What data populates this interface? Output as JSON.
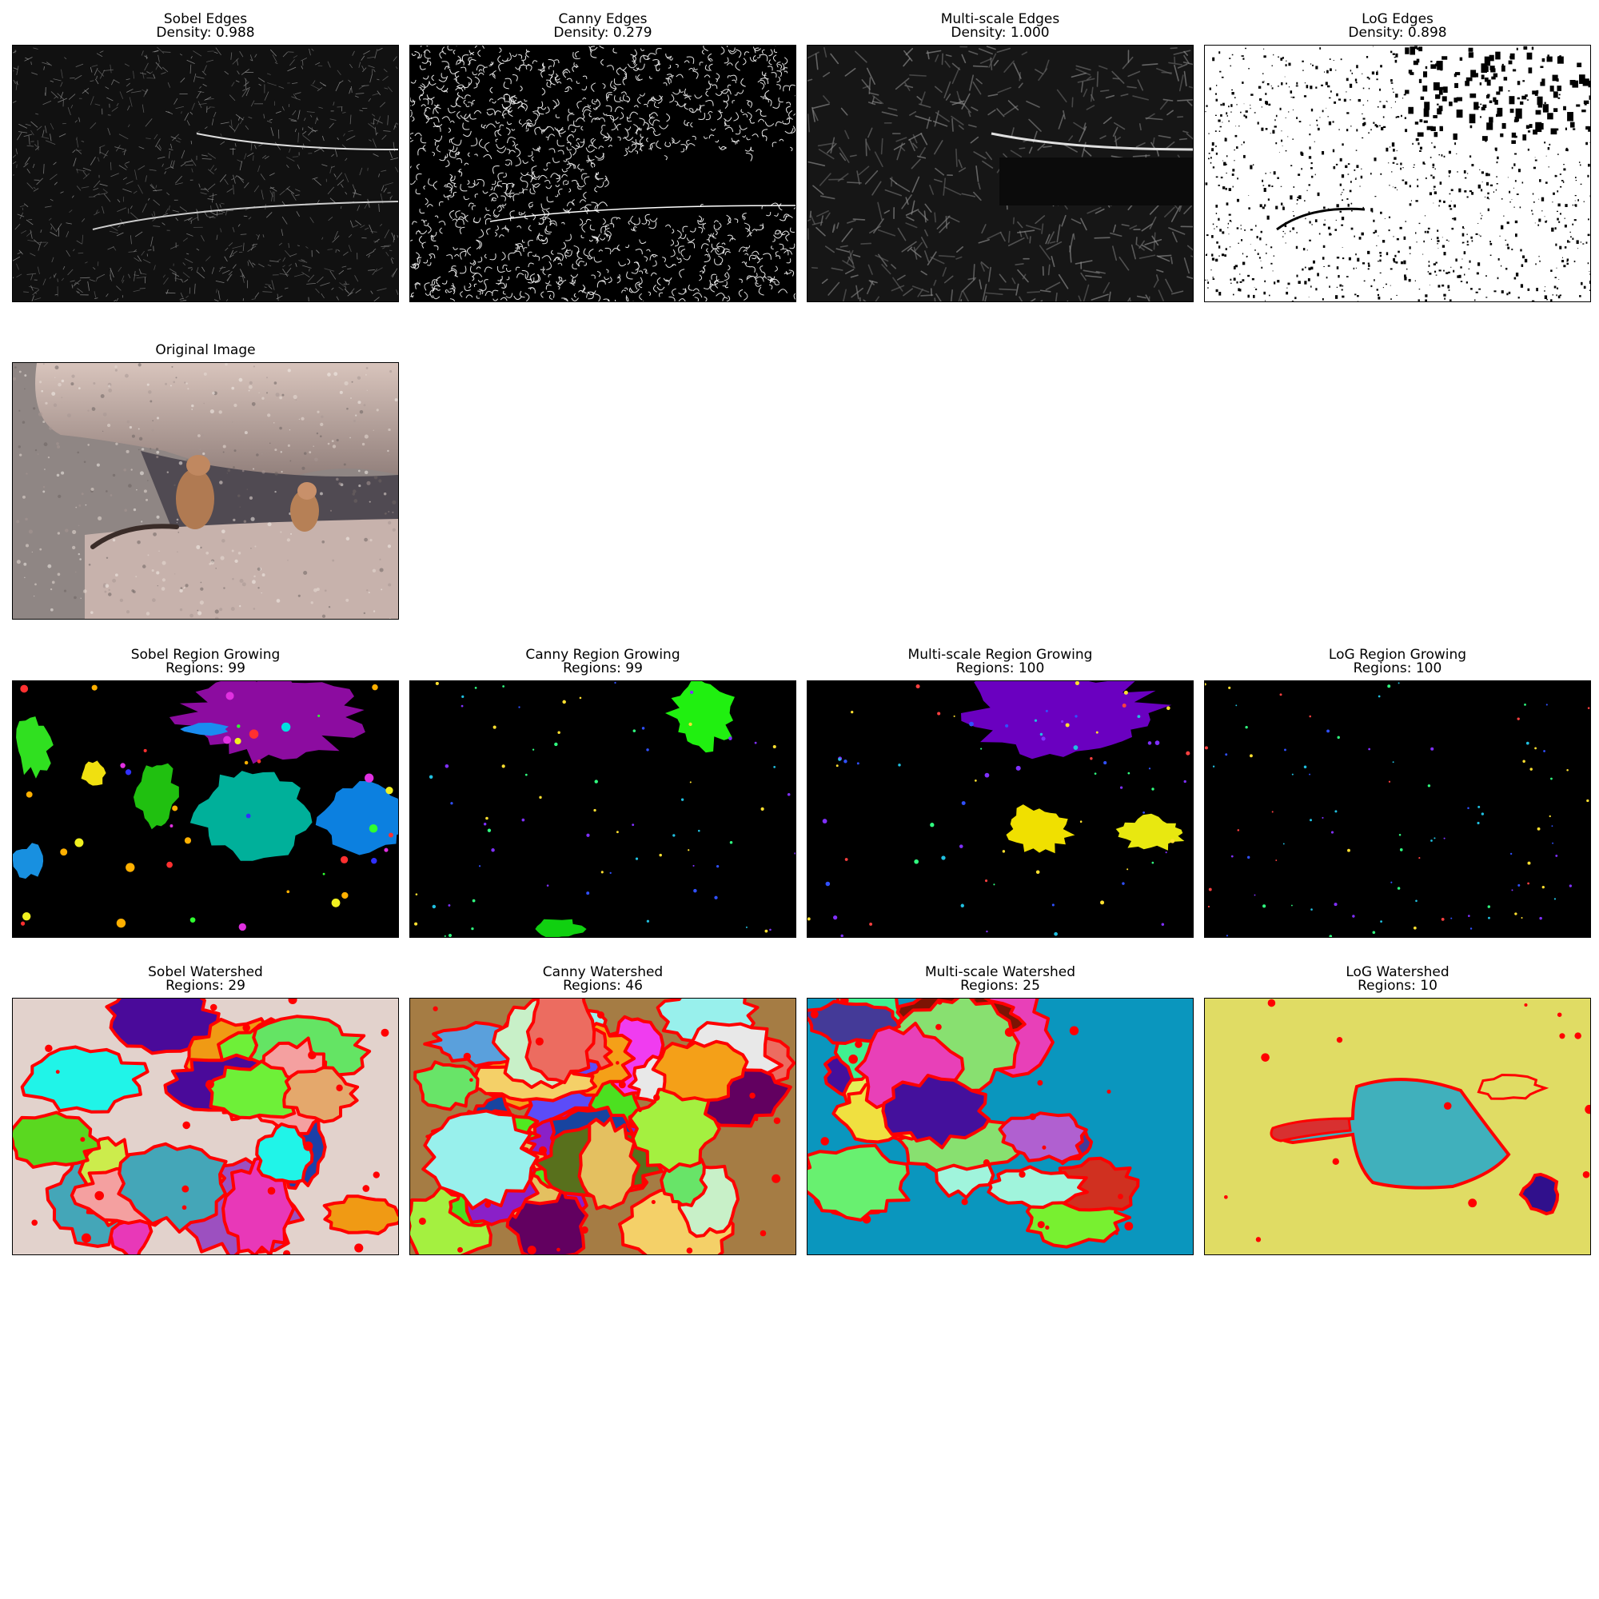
{
  "rows": [
    [
      {
        "id": "sobel-edges",
        "title": "Sobel Edges",
        "subtitle": "Density: 0.988",
        "style": "sobel"
      },
      {
        "id": "canny-edges",
        "title": "Canny Edges",
        "subtitle": "Density: 0.279",
        "style": "canny"
      },
      {
        "id": "multiscale-edges",
        "title": "Multi-scale Edges",
        "subtitle": "Density: 1.000",
        "style": "multiscale"
      },
      {
        "id": "log-edges",
        "title": "LoG Edges",
        "subtitle": "Density: 0.898",
        "style": "log"
      }
    ],
    [
      {
        "id": "original-image",
        "title": "Original Image",
        "subtitle": "",
        "style": "original"
      }
    ],
    [
      {
        "id": "sobel-region-growing",
        "title": "Sobel Region Growing",
        "subtitle": "Regions: 99",
        "style": "rg-sobel"
      },
      {
        "id": "canny-region-growing",
        "title": "Canny Region Growing",
        "subtitle": "Regions: 99",
        "style": "rg-canny"
      },
      {
        "id": "multiscale-region-growing",
        "title": "Multi-scale Region Growing",
        "subtitle": "Regions: 100",
        "style": "rg-multiscale"
      },
      {
        "id": "log-region-growing",
        "title": "LoG Region Growing",
        "subtitle": "Regions: 100",
        "style": "rg-log"
      }
    ],
    [
      {
        "id": "sobel-watershed",
        "title": "Sobel Watershed",
        "subtitle": "Regions: 29",
        "style": "ws-sobel"
      },
      {
        "id": "canny-watershed",
        "title": "Canny Watershed",
        "subtitle": "Regions: 46",
        "style": "ws-canny"
      },
      {
        "id": "multiscale-watershed",
        "title": "Multi-scale Watershed",
        "subtitle": "Regions: 25",
        "style": "ws-multiscale"
      },
      {
        "id": "log-watershed",
        "title": "LoG Watershed",
        "subtitle": "Regions: 10",
        "style": "ws-log"
      }
    ]
  ],
  "colors": {
    "watershed_boundary": "#ff0000",
    "sobel_ws_background": "#e2d2cc",
    "canny_ws_background": "#a57c44",
    "multiscale_ws_background": "#0a96be",
    "log_ws_background": "#e0dc64",
    "log_ws_region": "#40b0bc",
    "sobel_rg_purple": "#8c0ca0",
    "sobel_rg_teal": "#00b09a",
    "sobel_rg_blue": "#0c80e0",
    "canny_rg_green": "#20f010",
    "multiscale_rg_purple": "#6a00c0",
    "multiscale_rg_yellow": "#f0e000"
  }
}
